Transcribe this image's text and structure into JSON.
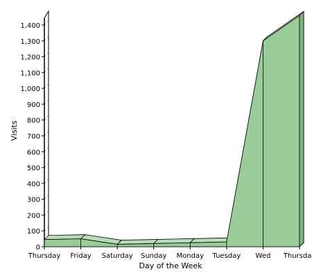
{
  "chart_data": {
    "type": "area",
    "title": "",
    "xlabel": "Day of the Week",
    "ylabel": "Visits",
    "categories": [
      "Thursday",
      "Friday",
      "Saturday",
      "Sunday",
      "Monday",
      "Tuesday",
      "Wed",
      "Thursday"
    ],
    "series": [
      {
        "values": [
          45,
          50,
          15,
          20,
          25,
          30,
          1300,
          1460
        ]
      }
    ],
    "ylim": [
      0,
      1400
    ],
    "ytick_step": 100,
    "ytick_labels": [
      "0",
      "100",
      "200",
      "300",
      "400",
      "500",
      "600",
      "700",
      "800",
      "900",
      "1,000",
      "1,100",
      "1,200",
      "1,300",
      "1,400"
    ],
    "grid": true,
    "grid_style": "dashed",
    "three_d": true,
    "colors": {
      "fill": "#99cc99",
      "top": "#b5dcb5",
      "edge": "#000000",
      "grid": "#999999"
    }
  }
}
